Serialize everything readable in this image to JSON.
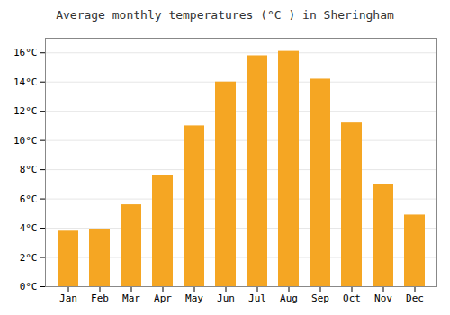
{
  "chart_data": {
    "type": "bar",
    "title": "Average monthly temperatures (°C ) in Sheringham",
    "categories": [
      "Jan",
      "Feb",
      "Mar",
      "Apr",
      "May",
      "Jun",
      "Jul",
      "Aug",
      "Sep",
      "Oct",
      "Nov",
      "Dec"
    ],
    "values": [
      3.8,
      3.9,
      5.6,
      7.6,
      11.0,
      14.0,
      15.8,
      16.1,
      14.2,
      11.2,
      7.0,
      4.9
    ],
    "color": "#F5A623",
    "ylim": [
      0,
      17
    ],
    "yticks": [
      {
        "value": 0,
        "label": "0°C"
      },
      {
        "value": 2,
        "label": "2°C"
      },
      {
        "value": 4,
        "label": "4°C"
      },
      {
        "value": 6,
        "label": "6°C"
      },
      {
        "value": 8,
        "label": "8°C"
      },
      {
        "value": 10,
        "label": "10°C"
      },
      {
        "value": 12,
        "label": "12°C"
      },
      {
        "value": 14,
        "label": "14°C"
      },
      {
        "value": 16,
        "label": "16°C"
      }
    ],
    "grid": true
  }
}
